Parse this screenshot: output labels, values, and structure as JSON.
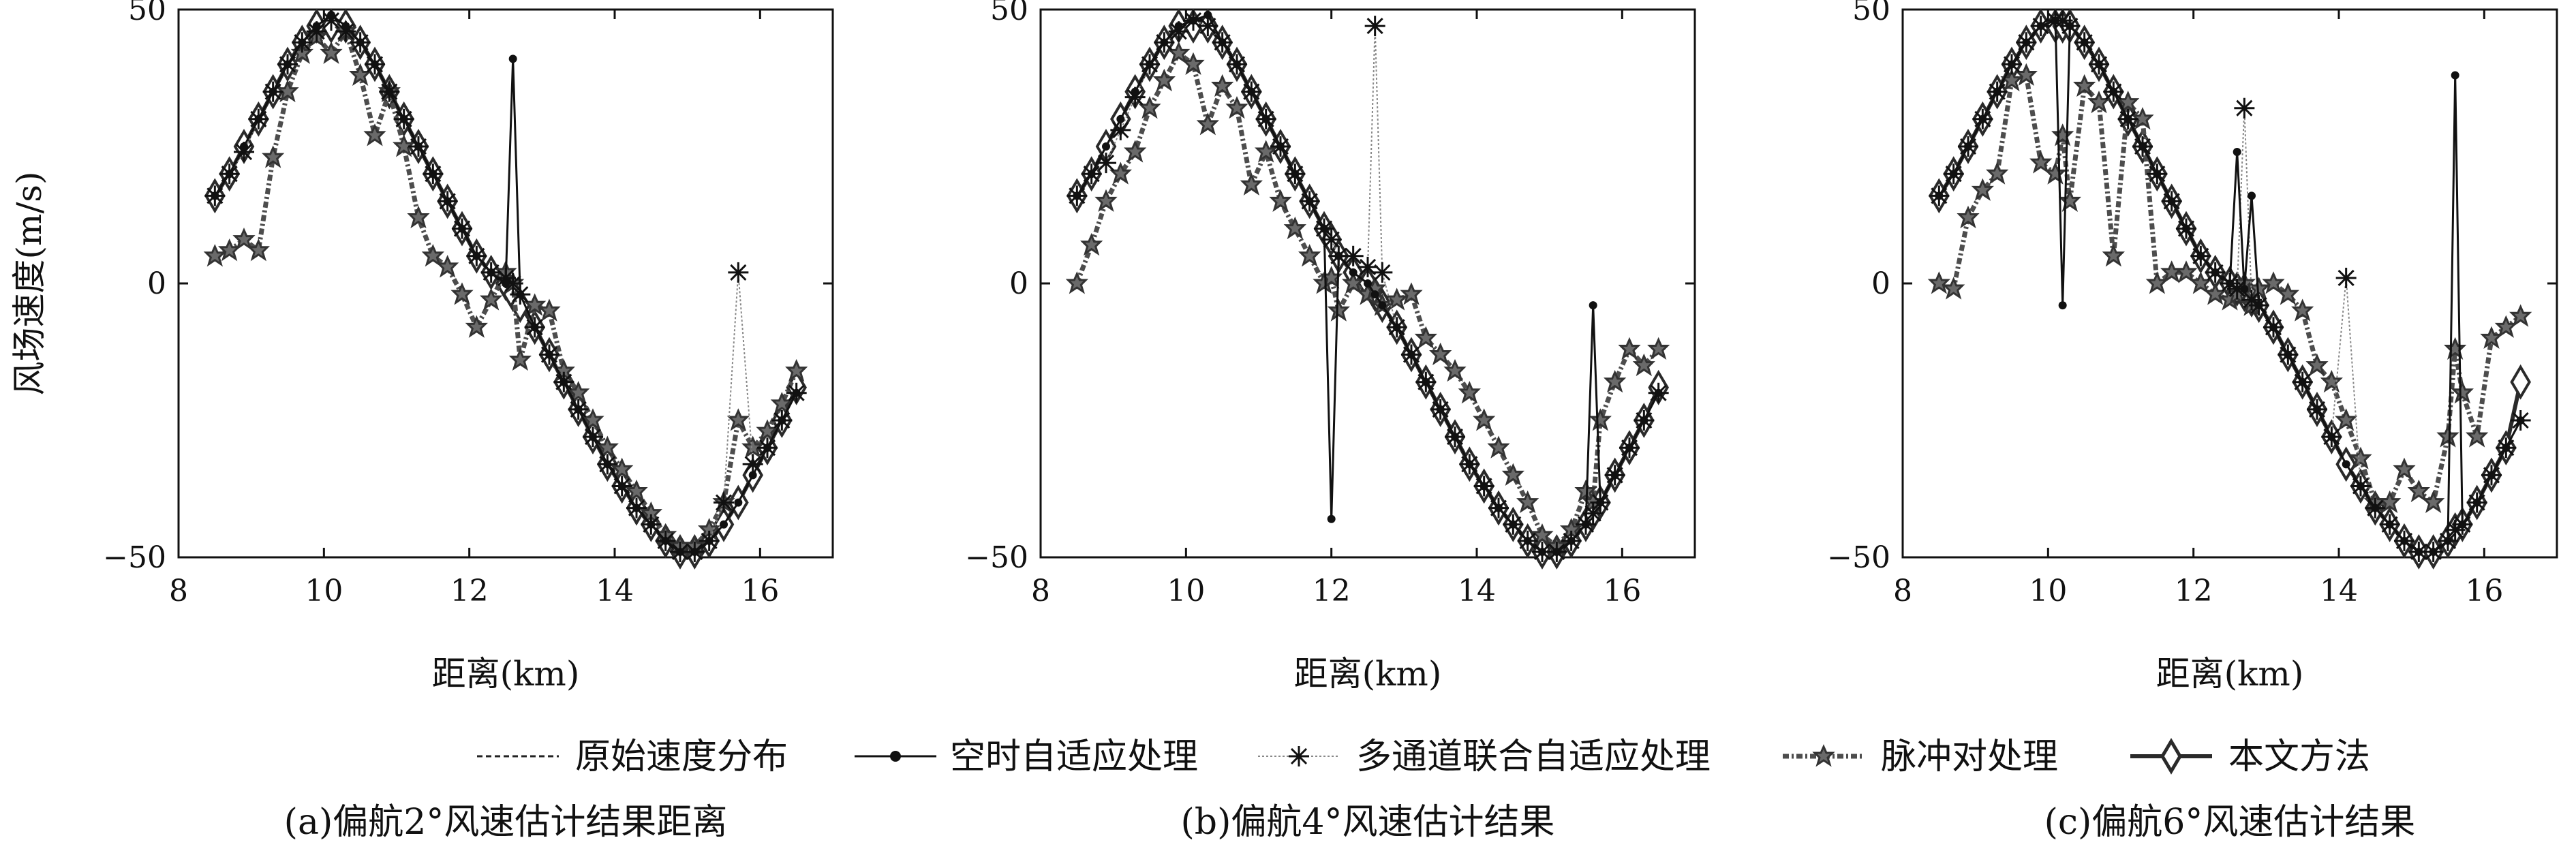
{
  "colors": {
    "orig": "#222222",
    "st": "#111111",
    "mc": "#888888",
    "pp": "#4d4d4d",
    "ours": "#2a2a2a"
  },
  "legend": [
    {
      "key": "orig",
      "label": "原始速度分布"
    },
    {
      "key": "st",
      "label": "空时自适应处理"
    },
    {
      "key": "mc",
      "label": "多通道联合自适应处理"
    },
    {
      "key": "pp",
      "label": "脉冲对处理"
    },
    {
      "key": "ours",
      "label": "本文方法"
    }
  ],
  "chart_data": [
    {
      "type": "line",
      "caption": "(a)偏航2°风速估计结果距离",
      "xlabel": "距离(km)",
      "ylabel": "风场速度(m/s)",
      "xlim": [
        8,
        17
      ],
      "ylim": [
        -50,
        50
      ],
      "xticks": [
        8,
        10,
        12,
        14,
        16
      ],
      "yticks": [
        -50,
        0,
        50
      ],
      "x": [
        8.5,
        8.7,
        8.9,
        9.1,
        9.3,
        9.5,
        9.7,
        9.9,
        10.1,
        10.3,
        10.5,
        10.7,
        10.9,
        11.1,
        11.3,
        11.5,
        11.7,
        11.9,
        12.1,
        12.3,
        12.5,
        12.6,
        12.7,
        12.9,
        13.1,
        13.3,
        13.5,
        13.7,
        13.9,
        14.1,
        14.3,
        14.5,
        14.7,
        14.9,
        15.1,
        15.3,
        15.5,
        15.7,
        15.9,
        16.1,
        16.3,
        16.5
      ],
      "series": [
        {
          "key": "orig",
          "values": [
            16,
            20,
            25,
            30,
            35,
            40,
            44,
            47,
            48,
            47,
            44,
            40,
            35,
            30,
            25,
            20,
            15,
            10,
            5,
            2,
            0,
            -2,
            -4,
            -8,
            -13,
            -18,
            -23,
            -28,
            -33,
            -37,
            -41,
            -44,
            -47,
            -49,
            -49,
            -47,
            -44,
            -40,
            -35,
            -30,
            -25,
            -20
          ]
        },
        {
          "key": "st",
          "values": [
            16,
            20,
            25,
            30,
            35,
            40,
            44,
            47,
            49,
            47,
            44,
            40,
            35,
            30,
            25,
            20,
            15,
            10,
            5,
            2,
            0,
            41,
            -2,
            -8,
            -13,
            -18,
            -23,
            -28,
            -33,
            -37,
            -41,
            -44,
            -47,
            -49,
            -49,
            -47,
            -44,
            -40,
            -35,
            -30,
            -25,
            -20
          ]
        },
        {
          "key": "mc",
          "values": [
            16,
            20,
            24,
            30,
            35,
            40,
            44,
            46,
            48,
            46,
            44,
            40,
            35,
            30,
            25,
            20,
            15,
            10,
            5,
            2,
            1,
            0,
            -2,
            -8,
            -13,
            -18,
            -23,
            -28,
            -33,
            -37,
            -41,
            -44,
            -47,
            -49,
            -49,
            -47,
            -40,
            2,
            -33,
            -30,
            -25,
            -20
          ]
        },
        {
          "key": "pp",
          "values": [
            5,
            6,
            8,
            6,
            23,
            35,
            42,
            45,
            42,
            46,
            38,
            27,
            35,
            25,
            12,
            5,
            3,
            -2,
            -8,
            -3,
            2,
            0,
            -14,
            -4,
            -5,
            -16,
            -20,
            -25,
            -30,
            -34,
            -38,
            -42,
            -46,
            -48,
            -48,
            -45,
            -40,
            -25,
            -30,
            -27,
            -22,
            -16
          ]
        },
        {
          "key": "ours",
          "values": [
            16,
            20,
            25,
            30,
            35,
            40,
            44,
            47,
            47,
            47,
            44,
            40,
            35,
            30,
            25,
            20,
            15,
            10,
            5,
            2,
            0,
            -2,
            -4,
            -8,
            -13,
            -18,
            -23,
            -28,
            -33,
            -37,
            -41,
            -44,
            -47,
            -49,
            -49,
            -47,
            -44,
            -40,
            -35,
            -30,
            -25,
            -19
          ]
        }
      ]
    },
    {
      "type": "line",
      "caption": "(b)偏航4°风速估计结果",
      "xlabel": "距离(km)",
      "ylabel": "",
      "xlim": [
        8,
        17
      ],
      "ylim": [
        -50,
        50
      ],
      "xticks": [
        8,
        10,
        12,
        14,
        16
      ],
      "yticks": [
        -50,
        0,
        50
      ],
      "x": [
        8.5,
        8.7,
        8.9,
        9.1,
        9.3,
        9.5,
        9.7,
        9.9,
        10.1,
        10.3,
        10.5,
        10.7,
        10.9,
        11.1,
        11.3,
        11.5,
        11.7,
        11.9,
        12.0,
        12.1,
        12.3,
        12.5,
        12.6,
        12.7,
        12.9,
        13.1,
        13.3,
        13.5,
        13.7,
        13.9,
        14.1,
        14.3,
        14.5,
        14.7,
        14.9,
        15.1,
        15.3,
        15.5,
        15.6,
        15.7,
        15.9,
        16.1,
        16.3,
        16.5
      ],
      "series": [
        {
          "key": "orig",
          "values": [
            16,
            20,
            25,
            30,
            35,
            40,
            44,
            47,
            48,
            47,
            44,
            40,
            35,
            30,
            25,
            20,
            15,
            10,
            8,
            5,
            2,
            0,
            -2,
            -4,
            -8,
            -13,
            -18,
            -23,
            -28,
            -33,
            -37,
            -41,
            -44,
            -47,
            -49,
            -49,
            -47,
            -44,
            -42,
            -40,
            -35,
            -30,
            -25,
            -20
          ]
        },
        {
          "key": "st",
          "values": [
            16,
            20,
            25,
            30,
            35,
            40,
            44,
            47,
            48,
            49,
            44,
            40,
            35,
            30,
            25,
            20,
            15,
            10,
            -43,
            5,
            2,
            0,
            -2,
            -4,
            -8,
            -13,
            -18,
            -23,
            -28,
            -33,
            -37,
            -41,
            -44,
            -47,
            -49,
            -49,
            -47,
            -44,
            -4,
            -40,
            -35,
            -30,
            -25,
            -20
          ]
        },
        {
          "key": "mc",
          "values": [
            16,
            20,
            22,
            28,
            34,
            40,
            44,
            46,
            48,
            47,
            44,
            40,
            35,
            30,
            25,
            20,
            15,
            10,
            8,
            5,
            5,
            3,
            47,
            2,
            -8,
            -13,
            -18,
            -23,
            -28,
            -33,
            -37,
            -41,
            -44,
            -47,
            -49,
            -49,
            -47,
            -44,
            -42,
            -40,
            -35,
            -30,
            -25,
            -20
          ]
        },
        {
          "key": "pp",
          "values": [
            0,
            7,
            15,
            20,
            24,
            32,
            37,
            42,
            40,
            29,
            36,
            32,
            18,
            24,
            15,
            10,
            5,
            0,
            1,
            -5,
            0,
            -2,
            -1,
            -4,
            -3,
            -2,
            -10,
            -13,
            -16,
            -20,
            -25,
            -30,
            -35,
            -40,
            -46,
            -48,
            -45,
            -38,
            -40,
            -25,
            -18,
            -12,
            -15,
            -12
          ]
        },
        {
          "key": "ours",
          "values": [
            16,
            20,
            25,
            30,
            35,
            40,
            44,
            47,
            47,
            47,
            44,
            40,
            35,
            30,
            25,
            20,
            15,
            10,
            8,
            5,
            2,
            0,
            -2,
            -4,
            -8,
            -13,
            -18,
            -23,
            -28,
            -33,
            -37,
            -41,
            -44,
            -47,
            -49,
            -49,
            -47,
            -44,
            -42,
            -40,
            -35,
            -30,
            -25,
            -19
          ]
        }
      ]
    },
    {
      "type": "line",
      "caption": "(c)偏航6°风速估计结果",
      "xlabel": "距离(km)",
      "ylabel": "",
      "xlim": [
        8,
        17
      ],
      "ylim": [
        -50,
        50
      ],
      "xticks": [
        8,
        10,
        12,
        14,
        16
      ],
      "yticks": [
        -50,
        0,
        50
      ],
      "x": [
        8.5,
        8.7,
        8.9,
        9.1,
        9.3,
        9.5,
        9.7,
        9.9,
        10.1,
        10.2,
        10.3,
        10.5,
        10.7,
        10.9,
        11.1,
        11.3,
        11.5,
        11.7,
        11.9,
        12.1,
        12.3,
        12.5,
        12.6,
        12.7,
        12.8,
        12.9,
        13.1,
        13.3,
        13.5,
        13.7,
        13.9,
        14.1,
        14.3,
        14.5,
        14.7,
        14.9,
        15.1,
        15.3,
        15.5,
        15.6,
        15.7,
        15.9,
        16.1,
        16.3,
        16.5
      ],
      "series": [
        {
          "key": "orig",
          "values": [
            16,
            20,
            25,
            30,
            35,
            40,
            44,
            47,
            48,
            48,
            47,
            44,
            40,
            35,
            30,
            25,
            20,
            15,
            10,
            5,
            2,
            0,
            -1,
            -2,
            -3,
            -4,
            -8,
            -13,
            -18,
            -23,
            -28,
            -33,
            -37,
            -41,
            -44,
            -47,
            -49,
            -49,
            -47,
            -45,
            -44,
            -40,
            -35,
            -30,
            -25
          ]
        },
        {
          "key": "st",
          "values": [
            16,
            20,
            25,
            30,
            35,
            40,
            44,
            47,
            48,
            -4,
            47,
            44,
            40,
            35,
            30,
            25,
            20,
            15,
            10,
            5,
            2,
            0,
            24,
            -1,
            16,
            -4,
            -8,
            -13,
            -18,
            -23,
            -28,
            -33,
            -37,
            -41,
            -44,
            -47,
            -49,
            -49,
            -47,
            38,
            -44,
            -40,
            -35,
            -30,
            -25
          ]
        },
        {
          "key": "mc",
          "values": [
            16,
            20,
            25,
            30,
            35,
            40,
            44,
            47,
            48,
            48,
            47,
            44,
            40,
            35,
            30,
            25,
            20,
            15,
            10,
            5,
            2,
            0,
            -1,
            32,
            -3,
            -4,
            -8,
            -13,
            -18,
            -23,
            -28,
            1,
            -37,
            -41,
            -44,
            -47,
            -49,
            -49,
            -47,
            -45,
            -44,
            -40,
            -35,
            -30,
            -25
          ]
        },
        {
          "key": "pp",
          "values": [
            0,
            -1,
            12,
            17,
            20,
            37,
            38,
            22,
            20,
            27,
            15,
            36,
            33,
            5,
            33,
            30,
            0,
            2,
            2,
            0,
            -2,
            -3,
            -2,
            0,
            -4,
            -1,
            0,
            -2,
            -5,
            -15,
            -18,
            -25,
            -32,
            -40,
            -40,
            -34,
            -38,
            -40,
            -28,
            -12,
            -20,
            -28,
            -10,
            -8,
            -6
          ]
        },
        {
          "key": "ours",
          "values": [
            16,
            20,
            25,
            30,
            35,
            40,
            44,
            47,
            47,
            47,
            47,
            44,
            40,
            35,
            30,
            25,
            20,
            15,
            10,
            5,
            2,
            0,
            -1,
            -2,
            -3,
            -4,
            -8,
            -13,
            -18,
            -23,
            -28,
            -33,
            -37,
            -41,
            -44,
            -47,
            -49,
            -49,
            -47,
            -45,
            -44,
            -40,
            -35,
            -30,
            -18
          ]
        }
      ]
    }
  ]
}
